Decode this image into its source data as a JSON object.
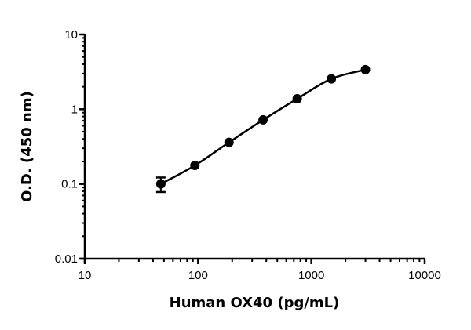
{
  "chart_data": {
    "type": "scatter",
    "title": "",
    "xlabel": "Human OX40 (pg/mL)",
    "ylabel": "O.D. (450 nm)",
    "xscale": "log",
    "yscale": "log",
    "xlim": [
      10,
      10000
    ],
    "ylim": [
      0.01,
      10
    ],
    "x_ticks": [
      "10",
      "100",
      "1000",
      "10000"
    ],
    "y_ticks": [
      "0.01",
      "0.1",
      "1",
      "10"
    ],
    "grid": false,
    "legend": null,
    "fit_line": "sigmoidal curve through points",
    "series": [
      {
        "name": "Human OX40",
        "color": "#000000",
        "x": [
          46.9,
          93.75,
          187.5,
          375,
          750,
          1500,
          3000
        ],
        "y": [
          0.1,
          0.177,
          0.36,
          0.72,
          1.38,
          2.55,
          3.38
        ],
        "error": [
          0.022,
          0,
          0,
          0,
          0,
          0,
          0
        ]
      }
    ]
  }
}
